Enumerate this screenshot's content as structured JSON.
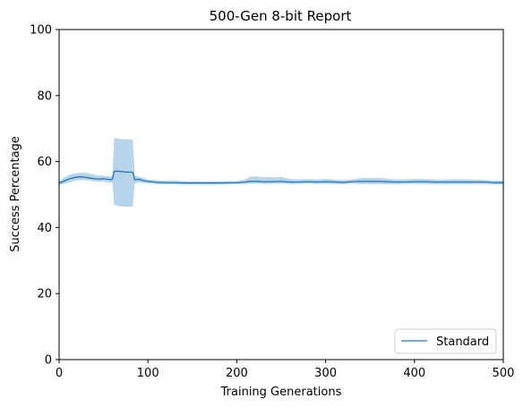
{
  "chart_data": {
    "type": "line",
    "title": "500-Gen 8-bit Report",
    "xlabel": "Training Generations",
    "ylabel": "Success Percentage",
    "xlim": [
      0,
      500
    ],
    "ylim": [
      0,
      100
    ],
    "xticks": [
      0,
      100,
      200,
      300,
      400,
      500
    ],
    "yticks": [
      0,
      20,
      40,
      60,
      80,
      100
    ],
    "grid": false,
    "legend_position": "bottom-right",
    "colors": {
      "line": "#1f77b4",
      "band": "#b8d4ea",
      "axis": "#000000"
    },
    "series": [
      {
        "name": "Standard",
        "x": [
          0,
          5,
          10,
          15,
          20,
          25,
          30,
          35,
          40,
          45,
          50,
          55,
          58,
          60,
          62,
          65,
          70,
          75,
          80,
          83,
          85,
          90,
          95,
          100,
          110,
          120,
          130,
          140,
          150,
          175,
          200,
          210,
          215,
          220,
          230,
          240,
          250,
          260,
          270,
          280,
          290,
          300,
          310,
          320,
          330,
          340,
          350,
          360,
          370,
          380,
          390,
          400,
          410,
          420,
          430,
          440,
          450,
          460,
          470,
          480,
          490,
          500
        ],
        "y": [
          53.5,
          54.0,
          54.6,
          55.0,
          55.3,
          55.4,
          55.2,
          55.0,
          54.8,
          54.7,
          54.8,
          54.6,
          54.5,
          54.7,
          57.0,
          57.1,
          57.0,
          56.8,
          56.8,
          56.7,
          54.5,
          54.6,
          54.2,
          54.0,
          53.7,
          53.6,
          53.6,
          53.5,
          53.5,
          53.5,
          53.6,
          53.8,
          54.0,
          54.0,
          53.9,
          53.9,
          54.0,
          53.8,
          53.8,
          53.9,
          53.8,
          53.9,
          53.8,
          53.7,
          53.9,
          54.0,
          54.0,
          54.0,
          53.9,
          53.8,
          53.8,
          53.9,
          53.9,
          53.8,
          53.8,
          53.8,
          53.8,
          53.8,
          53.8,
          53.8,
          53.6,
          53.6
        ],
        "upper": [
          54.0,
          55.0,
          55.8,
          56.2,
          56.5,
          56.6,
          56.6,
          56.3,
          56.0,
          55.8,
          55.7,
          55.6,
          55.5,
          55.8,
          67.2,
          67.0,
          66.8,
          66.7,
          66.7,
          66.6,
          55.8,
          55.4,
          55.0,
          54.5,
          54.3,
          54.2,
          54.2,
          54.1,
          54.0,
          54.0,
          54.1,
          54.6,
          55.5,
          55.5,
          55.3,
          55.2,
          55.3,
          54.7,
          54.6,
          54.7,
          54.6,
          54.7,
          54.5,
          54.4,
          54.6,
          55.0,
          55.0,
          55.0,
          54.8,
          54.6,
          54.6,
          54.7,
          54.7,
          54.6,
          54.5,
          54.6,
          54.6,
          54.6,
          54.5,
          54.4,
          54.2,
          54.2
        ],
        "lower": [
          53.0,
          53.2,
          53.6,
          54.0,
          54.3,
          54.4,
          54.3,
          54.2,
          54.0,
          53.9,
          53.9,
          53.7,
          53.6,
          53.7,
          46.8,
          46.6,
          46.4,
          46.3,
          46.3,
          46.3,
          53.4,
          53.7,
          53.5,
          53.4,
          53.2,
          53.1,
          53.1,
          53.0,
          53.0,
          53.0,
          53.1,
          53.2,
          53.3,
          53.3,
          53.2,
          53.3,
          53.3,
          53.2,
          53.2,
          53.3,
          53.2,
          53.2,
          53.2,
          53.1,
          53.3,
          53.2,
          53.2,
          53.2,
          53.2,
          53.1,
          53.2,
          53.2,
          53.2,
          53.1,
          53.1,
          53.1,
          53.1,
          53.1,
          53.1,
          53.1,
          53.0,
          53.0
        ]
      }
    ]
  }
}
